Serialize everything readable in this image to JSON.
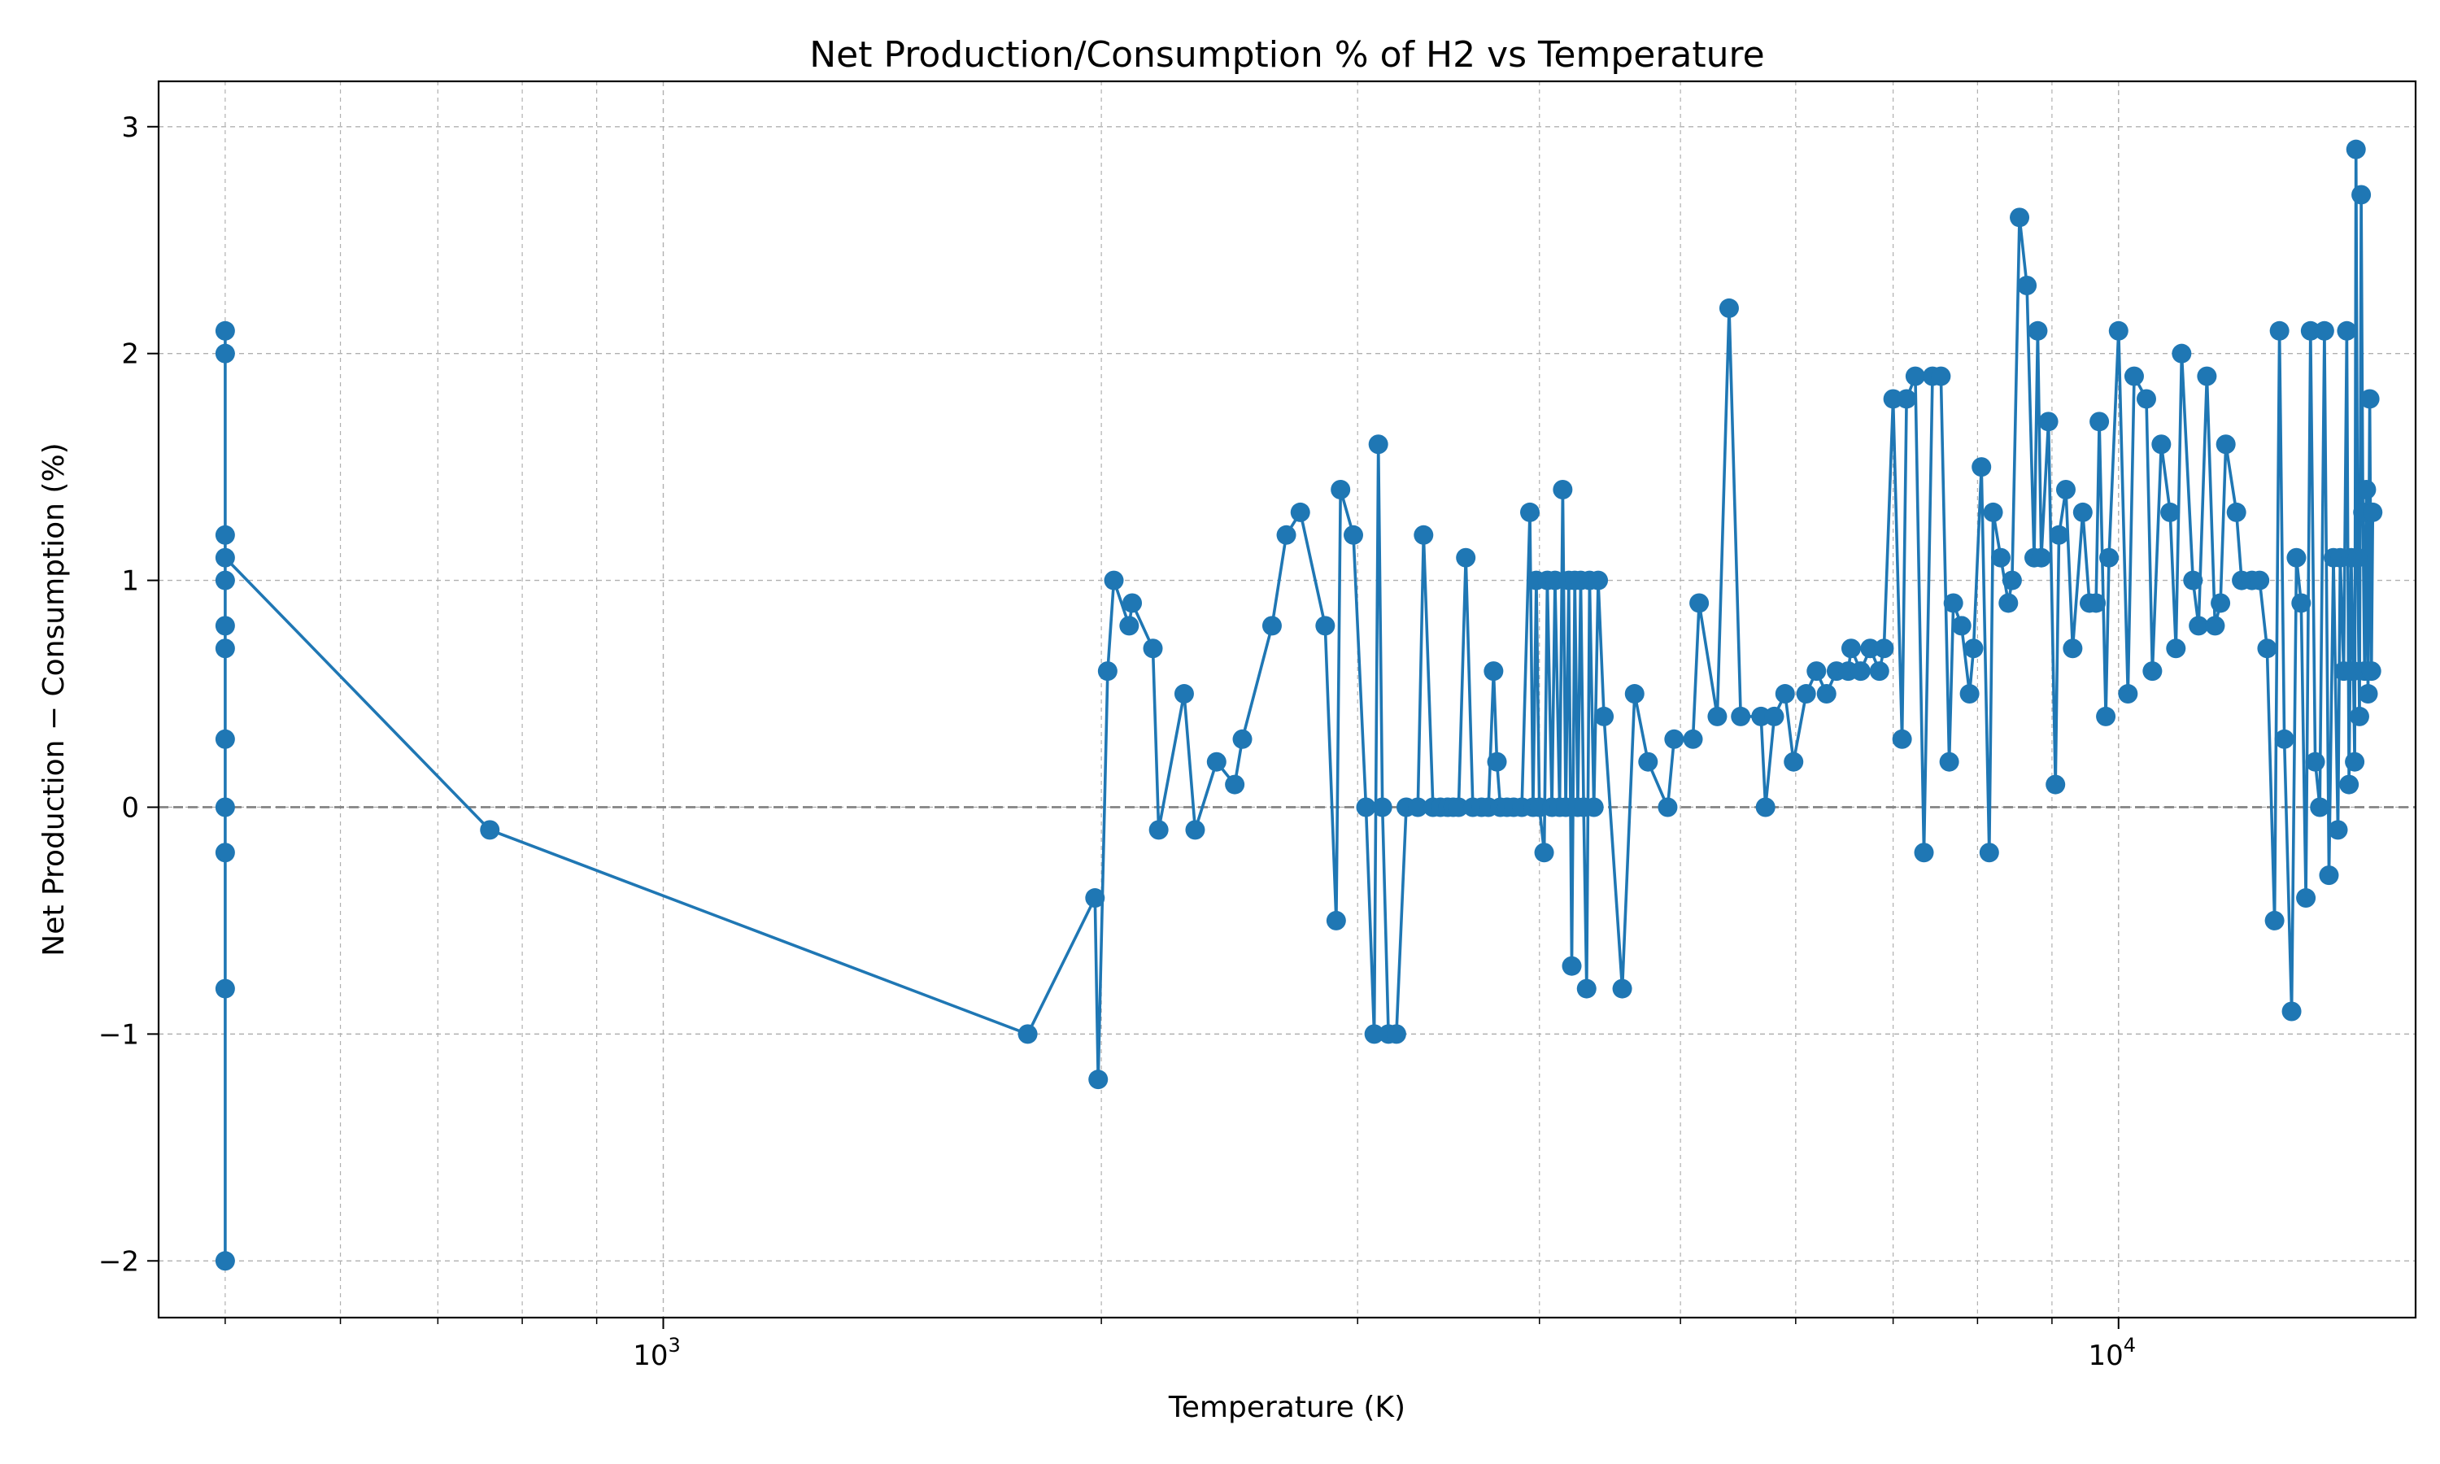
{
  "chart_data": {
    "type": "line",
    "title": "Net Production/Consumption % of H2 vs Temperature",
    "xlabel": "Temperature (K)",
    "ylabel": "Net Production − Consumption (%)",
    "x_scale": "log",
    "xlim": [
      450,
      16000
    ],
    "ylim": [
      -2.25,
      3.2
    ],
    "x_ticks": [
      {
        "value": 1000,
        "base": "10",
        "exp": "3"
      },
      {
        "value": 10000,
        "base": "10",
        "exp": "4"
      }
    ],
    "y_ticks": [
      {
        "value": -2,
        "label": "−2"
      },
      {
        "value": -1,
        "label": "−1"
      },
      {
        "value": 0,
        "label": "0"
      },
      {
        "value": 1,
        "label": "1"
      },
      {
        "value": 2,
        "label": "2"
      },
      {
        "value": 3,
        "label": "3"
      }
    ],
    "grid": true,
    "reference_line": {
      "y": 0,
      "style": "dashed",
      "color": "#808080"
    },
    "series": [
      {
        "color": "#1f77b4",
        "marker": "circle",
        "points": [
          [
            500,
            -2.0
          ],
          [
            500,
            -0.8
          ],
          [
            500,
            -0.2
          ],
          [
            500,
            0.0
          ],
          [
            500,
            0.3
          ],
          [
            500,
            0.7
          ],
          [
            500,
            0.8
          ],
          [
            500,
            1.0
          ],
          [
            500,
            1.2
          ],
          [
            500,
            2.0
          ],
          [
            500,
            2.1
          ],
          [
            500,
            1.1
          ],
          [
            760,
            -0.1
          ],
          [
            1780,
            -1.0
          ],
          [
            1980,
            -0.4
          ],
          [
            1990,
            -1.2
          ],
          [
            2020,
            0.6
          ],
          [
            2040,
            1.0
          ],
          [
            2090,
            0.8
          ],
          [
            2100,
            0.9
          ],
          [
            2170,
            0.7
          ],
          [
            2190,
            -0.1
          ],
          [
            2280,
            0.5
          ],
          [
            2320,
            -0.1
          ],
          [
            2400,
            0.2
          ],
          [
            2470,
            0.1
          ],
          [
            2500,
            0.3
          ],
          [
            2620,
            0.8
          ],
          [
            2680,
            1.2
          ],
          [
            2740,
            1.3
          ],
          [
            2850,
            0.8
          ],
          [
            2900,
            -0.5
          ],
          [
            2920,
            1.4
          ],
          [
            2980,
            1.2
          ],
          [
            3040,
            0.0
          ],
          [
            3080,
            -1.0
          ],
          [
            3100,
            1.6
          ],
          [
            3120,
            0.0
          ],
          [
            3150,
            -1.0
          ],
          [
            3190,
            -1.0
          ],
          [
            3240,
            0.0
          ],
          [
            3300,
            0.0
          ],
          [
            3330,
            1.2
          ],
          [
            3380,
            0.0
          ],
          [
            3420,
            0.0
          ],
          [
            3460,
            0.0
          ],
          [
            3490,
            0.0
          ],
          [
            3520,
            0.0
          ],
          [
            3560,
            1.1
          ],
          [
            3600,
            0.0
          ],
          [
            3650,
            0.0
          ],
          [
            3690,
            0.0
          ],
          [
            3720,
            0.6
          ],
          [
            3740,
            0.2
          ],
          [
            3760,
            0.0
          ],
          [
            3800,
            0.0
          ],
          [
            3840,
            0.0
          ],
          [
            3890,
            0.0
          ],
          [
            3940,
            1.3
          ],
          [
            3960,
            0.0
          ],
          [
            3980,
            1.0
          ],
          [
            4000,
            0.0
          ],
          [
            4030,
            -0.2
          ],
          [
            4050,
            1.0
          ],
          [
            4080,
            0.0
          ],
          [
            4100,
            1.0
          ],
          [
            4130,
            0.0
          ],
          [
            4150,
            1.4
          ],
          [
            4170,
            0.0
          ],
          [
            4190,
            1.0
          ],
          [
            4210,
            -0.7
          ],
          [
            4230,
            1.0
          ],
          [
            4250,
            0.0
          ],
          [
            4270,
            1.0
          ],
          [
            4290,
            0.0
          ],
          [
            4310,
            -0.8
          ],
          [
            4330,
            1.0
          ],
          [
            4360,
            0.0
          ],
          [
            4390,
            1.0
          ],
          [
            4430,
            0.4
          ],
          [
            4560,
            -0.8
          ],
          [
            4650,
            0.5
          ],
          [
            4750,
            0.2
          ],
          [
            4900,
            0.0
          ],
          [
            4950,
            0.3
          ],
          [
            5100,
            0.3
          ],
          [
            5150,
            0.9
          ],
          [
            5300,
            0.4
          ],
          [
            5400,
            2.2
          ],
          [
            5500,
            0.4
          ],
          [
            5680,
            0.4
          ],
          [
            5720,
            0.0
          ],
          [
            5800,
            0.4
          ],
          [
            5900,
            0.5
          ],
          [
            5980,
            0.2
          ],
          [
            6100,
            0.5
          ],
          [
            6200,
            0.6
          ],
          [
            6300,
            0.5
          ],
          [
            6400,
            0.6
          ],
          [
            6520,
            0.6
          ],
          [
            6550,
            0.7
          ],
          [
            6650,
            0.6
          ],
          [
            6750,
            0.7
          ],
          [
            6850,
            0.6
          ],
          [
            6900,
            0.7
          ],
          [
            7000,
            1.8
          ],
          [
            7100,
            0.3
          ],
          [
            7150,
            1.8
          ],
          [
            7250,
            1.9
          ],
          [
            7350,
            -0.2
          ],
          [
            7450,
            1.9
          ],
          [
            7550,
            1.9
          ],
          [
            7650,
            0.2
          ],
          [
            7700,
            0.9
          ],
          [
            7800,
            0.8
          ],
          [
            7900,
            0.5
          ],
          [
            7950,
            0.7
          ],
          [
            8050,
            1.5
          ],
          [
            8150,
            -0.2
          ],
          [
            8200,
            1.3
          ],
          [
            8300,
            1.1
          ],
          [
            8400,
            0.9
          ],
          [
            8450,
            1.0
          ],
          [
            8550,
            2.6
          ],
          [
            8650,
            2.3
          ],
          [
            8750,
            1.1
          ],
          [
            8800,
            2.1
          ],
          [
            8850,
            1.1
          ],
          [
            8950,
            1.7
          ],
          [
            9050,
            0.1
          ],
          [
            9100,
            1.2
          ],
          [
            9200,
            1.4
          ],
          [
            9300,
            0.7
          ],
          [
            9450,
            1.3
          ],
          [
            9550,
            0.9
          ],
          [
            9650,
            0.9
          ],
          [
            9700,
            1.7
          ],
          [
            9800,
            0.4
          ],
          [
            9850,
            1.1
          ],
          [
            10000,
            2.1
          ],
          [
            10150,
            0.5
          ],
          [
            10250,
            1.9
          ],
          [
            10450,
            1.8
          ],
          [
            10550,
            0.6
          ],
          [
            10700,
            1.6
          ],
          [
            10850,
            1.3
          ],
          [
            10950,
            0.7
          ],
          [
            11050,
            2.0
          ],
          [
            11250,
            1.0
          ],
          [
            11350,
            0.8
          ],
          [
            11500,
            1.9
          ],
          [
            11650,
            0.8
          ],
          [
            11750,
            0.9
          ],
          [
            11850,
            1.6
          ],
          [
            12050,
            1.3
          ],
          [
            12150,
            1.0
          ],
          [
            12350,
            1.0
          ],
          [
            12500,
            1.0
          ],
          [
            12650,
            0.7
          ],
          [
            12800,
            -0.5
          ],
          [
            12900,
            2.1
          ],
          [
            13000,
            0.3
          ],
          [
            13150,
            -0.9
          ],
          [
            13250,
            1.1
          ],
          [
            13350,
            0.9
          ],
          [
            13450,
            -0.4
          ],
          [
            13550,
            2.1
          ],
          [
            13650,
            0.2
          ],
          [
            13750,
            0.0
          ],
          [
            13850,
            2.1
          ],
          [
            13950,
            -0.3
          ],
          [
            14050,
            1.1
          ],
          [
            14150,
            -0.1
          ],
          [
            14200,
            1.1
          ],
          [
            14280,
            0.6
          ],
          [
            14350,
            2.1
          ],
          [
            14400,
            0.1
          ],
          [
            14450,
            1.1
          ],
          [
            14500,
            0.6
          ],
          [
            14530,
            0.2
          ],
          [
            14560,
            2.9
          ],
          [
            14600,
            1.1
          ],
          [
            14640,
            0.4
          ],
          [
            14680,
            2.7
          ],
          [
            14720,
            1.3
          ],
          [
            14760,
            0.6
          ],
          [
            14800,
            1.4
          ],
          [
            14840,
            0.5
          ],
          [
            14880,
            1.8
          ],
          [
            14920,
            0.6
          ],
          [
            14950,
            1.3
          ]
        ]
      }
    ]
  }
}
